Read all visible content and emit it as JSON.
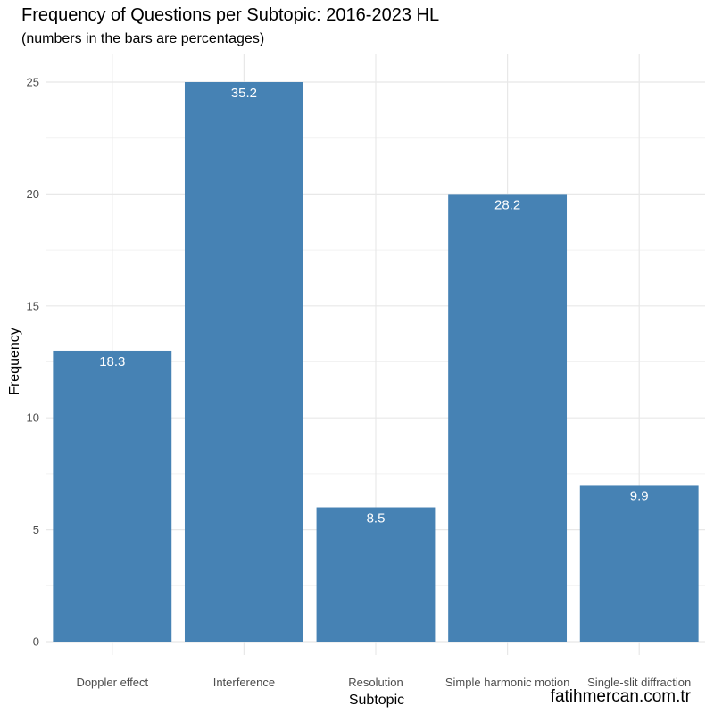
{
  "chart_data": {
    "type": "bar",
    "title": "Frequency of Questions per Subtopic: 2016-2023 HL",
    "subtitle": "(numbers in the bars are percentages)",
    "xlabel": "Subtopic",
    "ylabel": "Frequency",
    "categories": [
      "Doppler effect",
      "Interference",
      "Resolution",
      "Simple harmonic motion",
      "Single-slit diffraction"
    ],
    "values": [
      13,
      25,
      6,
      20,
      7
    ],
    "data_labels": [
      "18.3",
      "35.2",
      "8.5",
      "28.2",
      "9.9"
    ],
    "yticks": [
      0,
      5,
      10,
      15,
      20,
      25
    ],
    "ylim": [
      0,
      26.2
    ],
    "grid": true,
    "bar_color": "#4682B4"
  },
  "watermark": "fatihmercan.com.tr"
}
